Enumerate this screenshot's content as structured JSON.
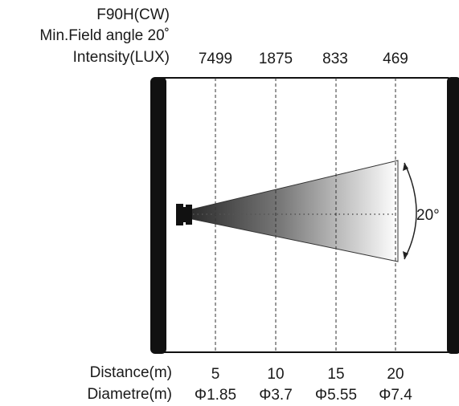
{
  "header": {
    "model": "F90H(CW)",
    "field_angle": "Min.Field angle 20˚",
    "intensity_label": "Intensity(LUX)"
  },
  "intensity_values": [
    "7499",
    "1875",
    "833",
    "469"
  ],
  "beam": {
    "angle_label": "20°"
  },
  "footer": {
    "distance_label": "Distance(m)",
    "diameter_label": "Diametre(m)",
    "distances": [
      "5",
      "10",
      "15",
      "20"
    ],
    "diameters": [
      "Φ1.85",
      "Φ3.7",
      "Φ5.55",
      "Φ7.4"
    ]
  },
  "colors": {
    "frame": "#111111",
    "beam_dark": "#2a2a2a",
    "beam_light": "#ffffff"
  }
}
